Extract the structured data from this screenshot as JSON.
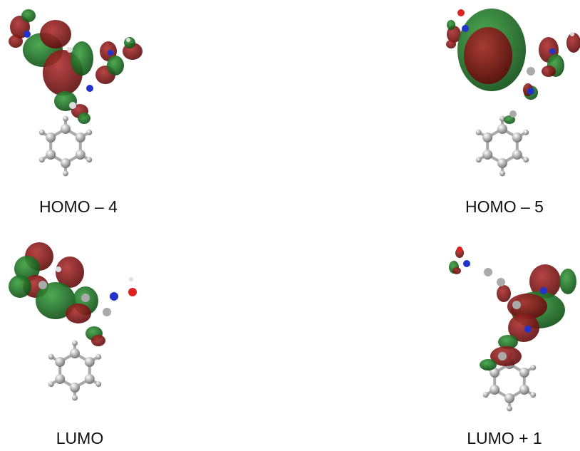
{
  "panels": [
    {
      "label": "HOMO – 4"
    },
    {
      "label": "HOMO – 5"
    },
    {
      "label": "LUMO"
    },
    {
      "label": "LUMO + 1"
    }
  ]
}
